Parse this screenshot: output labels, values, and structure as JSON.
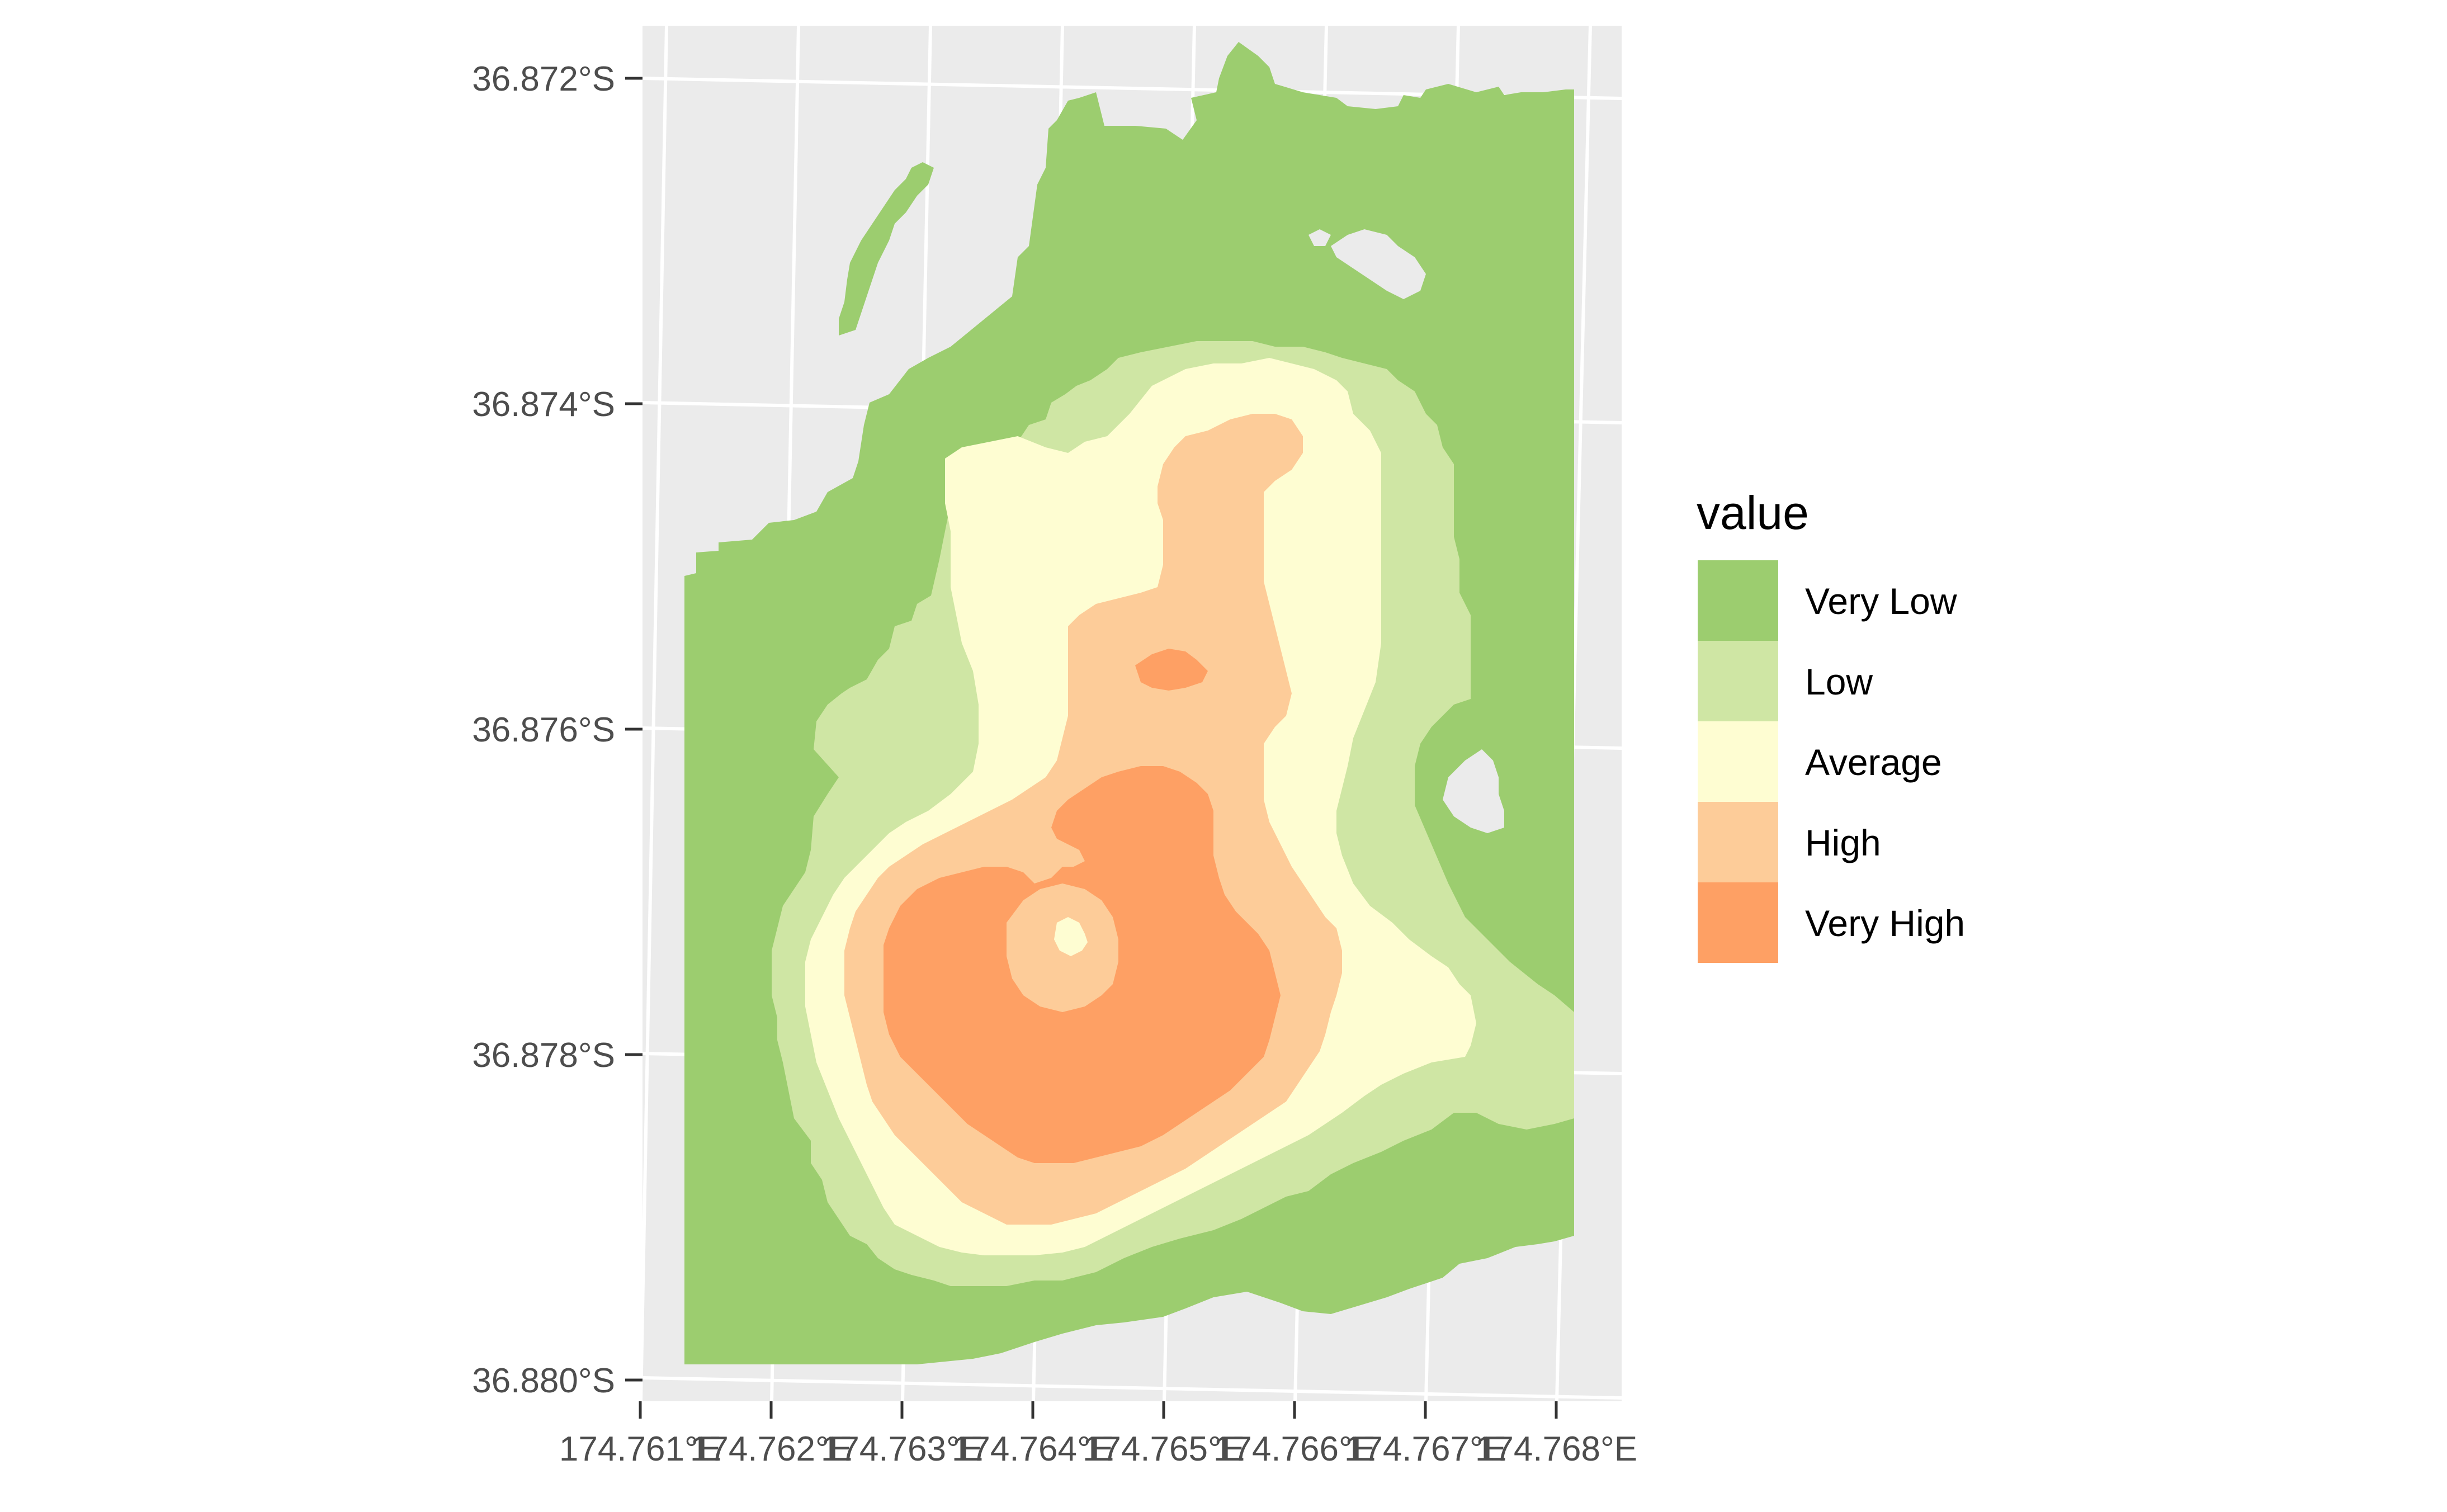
{
  "chart_data": {
    "type": "heatmap",
    "title": "",
    "xlabel": "",
    "ylabel": "",
    "x_ticks": [
      "174.761°E",
      "174.762°E",
      "174.763°E",
      "174.764°E",
      "174.765°E",
      "174.766°E",
      "174.767°E",
      "174.768°E"
    ],
    "y_ticks": [
      "36.872°S",
      "36.874°S",
      "36.876°S",
      "36.878°S",
      "36.880°S"
    ],
    "xlim": [
      174.761,
      174.7685
    ],
    "ylim": [
      -36.88,
      -36.8716
    ],
    "grid": true,
    "legend": {
      "title": "value",
      "placement": "right",
      "items": [
        {
          "label": "Very Low",
          "color": "#9ccd6f"
        },
        {
          "label": "Low",
          "color": "#cfe6a4"
        },
        {
          "label": "Average",
          "color": "#fefdd2"
        },
        {
          "label": "High",
          "color": "#fdcc99"
        },
        {
          "label": "Very High",
          "color": "#fea064"
        }
      ]
    }
  }
}
